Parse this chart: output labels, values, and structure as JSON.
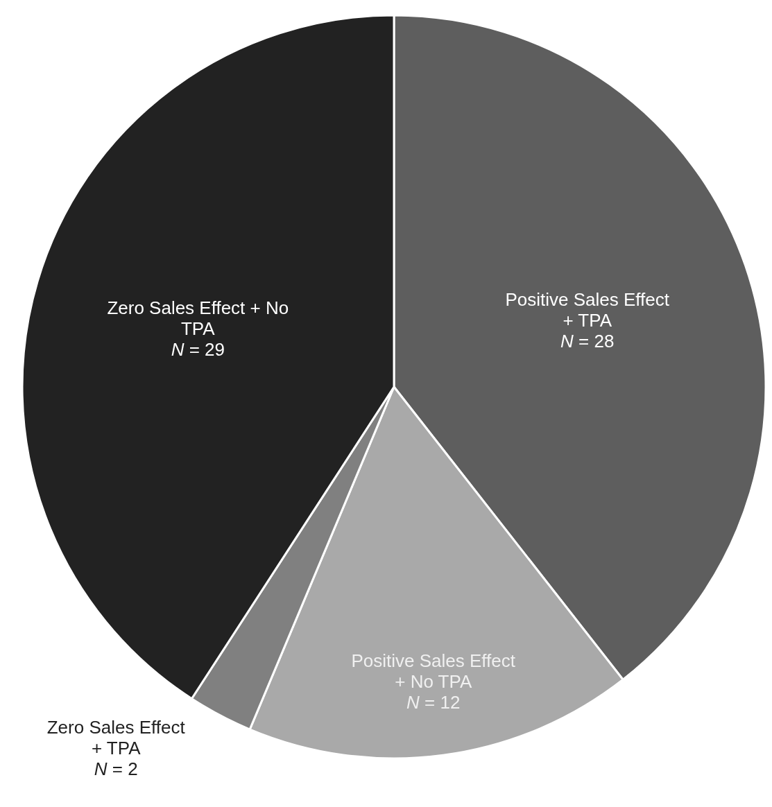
{
  "chart_data": {
    "type": "pie",
    "categories": [
      "Positive Sales Effect + TPA",
      "Positive Sales Effect + No TPA",
      "Zero Sales Effect + TPA",
      "Zero Sales Effect + No TPA"
    ],
    "values": [
      28,
      12,
      2,
      29
    ],
    "colors": [
      "#5e5e5e",
      "#a9a9a9",
      "#808080",
      "#222222"
    ],
    "value_labels": [
      "N = 28",
      "N = 12",
      "N = 2",
      "N = 29"
    ]
  }
}
